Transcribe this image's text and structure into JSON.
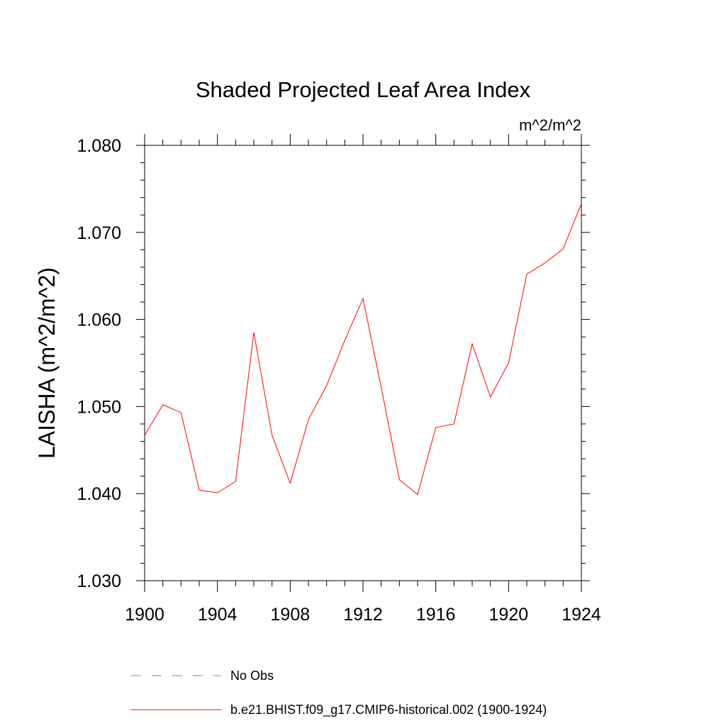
{
  "chart_data": {
    "type": "line",
    "title": "Shaded Projected Leaf Area Index",
    "units_label": "m^2/m^2",
    "ylabel": "LAISHA  (m^2/m^2)",
    "xlabel": "",
    "xlim": [
      1900,
      1924
    ],
    "ylim": [
      1.03,
      1.08
    ],
    "x_ticks": [
      "1900",
      "1904",
      "1908",
      "1912",
      "1916",
      "1920",
      "1924"
    ],
    "y_ticks": [
      "1.030",
      "1.040",
      "1.050",
      "1.060",
      "1.070",
      "1.080"
    ],
    "grid": false,
    "legend_placement": "bottom",
    "series": [
      {
        "name": "b.e21.BHIST.f09_g17.CMIP6-historical.002 (1900-1924)",
        "color": "#ff0000",
        "style": "solid",
        "x": [
          1900,
          1901,
          1902,
          1903,
          1904,
          1905,
          1906,
          1907,
          1908,
          1909,
          1910,
          1911,
          1912,
          1913,
          1914,
          1915,
          1916,
          1917,
          1918,
          1919,
          1920,
          1921,
          1922,
          1923,
          1924
        ],
        "values": [
          1.0467,
          1.0502,
          1.0493,
          1.0404,
          1.0401,
          1.0414,
          1.0585,
          1.0467,
          1.0412,
          1.0485,
          1.0524,
          1.0576,
          1.0624,
          1.0522,
          1.0416,
          1.0399,
          1.0476,
          1.048,
          1.0572,
          1.0511,
          1.055,
          1.0652,
          1.0665,
          1.0681,
          1.0733
        ]
      }
    ],
    "legend": [
      {
        "label": "No Obs",
        "color": "#7b7bd0",
        "style": "dashed"
      },
      {
        "label": "b.e21.BHIST.f09_g17.CMIP6-historical.002 (1900-1924)",
        "color": "#ff0000",
        "style": "solid"
      }
    ]
  }
}
